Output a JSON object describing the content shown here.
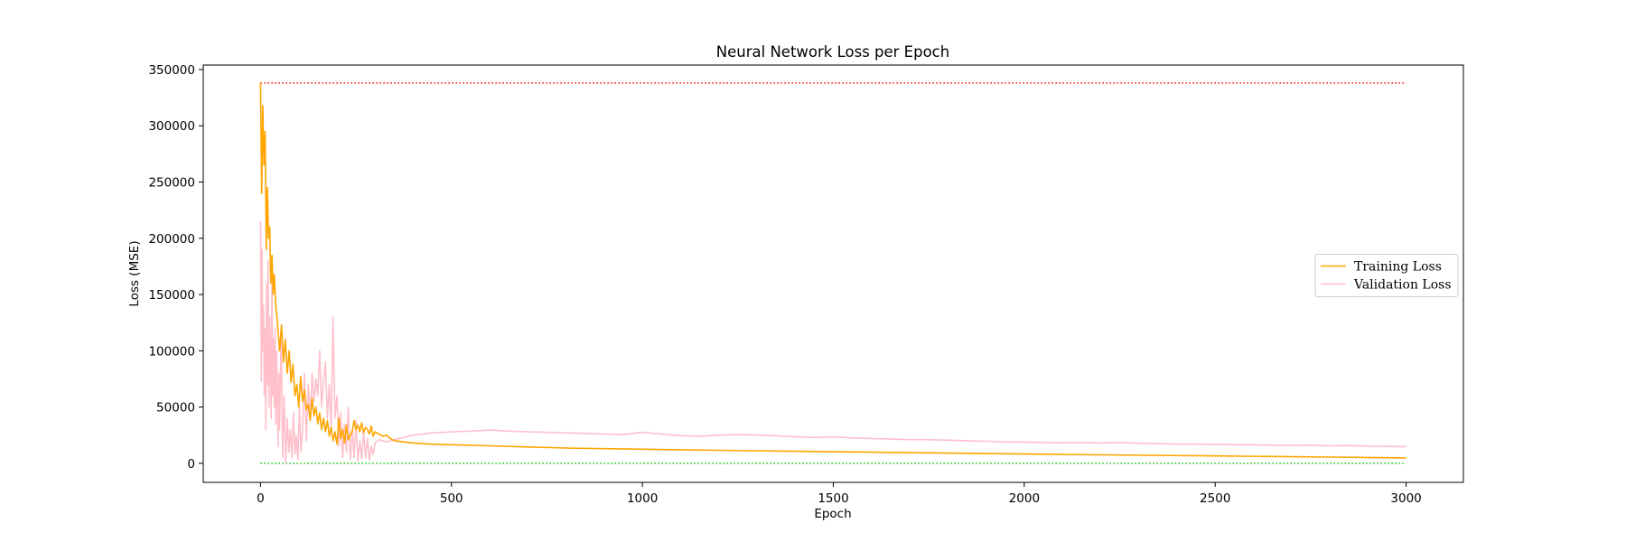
{
  "chart_data": {
    "type": "line",
    "title": "Neural Network Loss per Epoch",
    "xlabel": "Epoch",
    "ylabel": "Loss (MSE)",
    "xlim": [
      -150,
      3150
    ],
    "ylim": [
      -17000,
      354000
    ],
    "xticks": [
      0,
      500,
      1000,
      1500,
      2000,
      2500,
      3000
    ],
    "yticks": [
      0,
      50000,
      100000,
      150000,
      200000,
      250000,
      300000,
      350000
    ],
    "grid": false,
    "legend_position": "center-right",
    "series": [
      {
        "name": "Training Loss",
        "color": "#FFA500",
        "style": "solid",
        "x": [
          0,
          3,
          6,
          9,
          12,
          15,
          18,
          21,
          24,
          27,
          30,
          33,
          36,
          40,
          45,
          50,
          55,
          60,
          65,
          70,
          75,
          80,
          85,
          90,
          95,
          100,
          105,
          110,
          115,
          120,
          125,
          130,
          135,
          140,
          145,
          150,
          155,
          160,
          165,
          170,
          175,
          180,
          185,
          190,
          195,
          200,
          205,
          210,
          215,
          220,
          225,
          230,
          235,
          240,
          245,
          250,
          255,
          260,
          265,
          270,
          275,
          280,
          285,
          290,
          295,
          300,
          310,
          320,
          330,
          340,
          350,
          375,
          400,
          450,
          500,
          600,
          700,
          800,
          1000,
          1200,
          1500,
          1800,
          2000,
          2200,
          2500,
          2800,
          3000
        ],
        "y": [
          338000,
          240000,
          318000,
          265000,
          295000,
          190000,
          245000,
          200000,
          210000,
          160000,
          185000,
          150000,
          168000,
          140000,
          122000,
          100000,
          123000,
          90000,
          110000,
          80000,
          100000,
          72000,
          88000,
          60000,
          70000,
          50000,
          77000,
          55000,
          65000,
          48000,
          52000,
          38000,
          58000,
          42000,
          50000,
          35000,
          45000,
          30000,
          40000,
          28000,
          38000,
          24000,
          32000,
          20000,
          28000,
          17000,
          40000,
          22000,
          30000,
          18000,
          34000,
          21000,
          25000,
          28000,
          38000,
          30000,
          34000,
          28000,
          36000,
          27000,
          32000,
          30000,
          26000,
          33000,
          24000,
          28000,
          26000,
          24000,
          25000,
          22000,
          20000,
          19000,
          18000,
          17000,
          16500,
          15500,
          14500,
          13500,
          12500,
          11500,
          10200,
          9000,
          8200,
          7500,
          6500,
          5500,
          4800
        ]
      },
      {
        "name": "Validation Loss",
        "color": "#FFC0CB",
        "style": "solid",
        "x": [
          0,
          2,
          4,
          6,
          8,
          10,
          12,
          14,
          16,
          18,
          20,
          22,
          24,
          26,
          28,
          30,
          32,
          34,
          36,
          38,
          40,
          42,
          44,
          46,
          48,
          50,
          54,
          58,
          62,
          66,
          70,
          74,
          78,
          82,
          86,
          90,
          94,
          98,
          102,
          106,
          110,
          115,
          120,
          125,
          130,
          135,
          140,
          145,
          150,
          155,
          160,
          165,
          170,
          175,
          180,
          185,
          190,
          195,
          200,
          205,
          210,
          215,
          220,
          225,
          230,
          235,
          240,
          245,
          250,
          255,
          260,
          265,
          270,
          275,
          280,
          285,
          290,
          295,
          300,
          310,
          320,
          330,
          340,
          350,
          375,
          400,
          425,
          450,
          500,
          550,
          600,
          650,
          700,
          750,
          800,
          850,
          900,
          950,
          1000,
          1050,
          1100,
          1150,
          1200,
          1250,
          1300,
          1350,
          1400,
          1450,
          1500,
          1550,
          1600,
          1650,
          1700,
          1750,
          1800,
          1850,
          1900,
          1950,
          2000,
          2050,
          2100,
          2150,
          2200,
          2250,
          2300,
          2350,
          2400,
          2450,
          2500,
          2550,
          2600,
          2650,
          2700,
          2750,
          2800,
          2850,
          2900,
          2950,
          3000
        ],
        "y": [
          215000,
          73000,
          190000,
          100000,
          140000,
          60000,
          120000,
          30000,
          160000,
          70000,
          180000,
          50000,
          130000,
          95000,
          40000,
          170000,
          60000,
          110000,
          50000,
          120000,
          35000,
          100000,
          60000,
          15000,
          80000,
          30000,
          120000,
          5000,
          60000,
          0,
          40000,
          10000,
          30000,
          5000,
          45000,
          8000,
          25000,
          3000,
          50000,
          10000,
          30000,
          80000,
          20000,
          70000,
          40000,
          80000,
          55000,
          75000,
          60000,
          100000,
          50000,
          75000,
          90000,
          40000,
          70000,
          30000,
          130000,
          40000,
          60000,
          15000,
          45000,
          5000,
          35000,
          10000,
          50000,
          3000,
          30000,
          5000,
          38000,
          2000,
          20000,
          4000,
          28000,
          5000,
          22000,
          3000,
          15000,
          8000,
          18000,
          21000,
          20000,
          19000,
          20000,
          21000,
          23000,
          25000,
          26000,
          27000,
          28000,
          28500,
          29500,
          28500,
          28000,
          27500,
          27000,
          26500,
          26000,
          25500,
          27500,
          26000,
          24500,
          24000,
          25000,
          25500,
          25000,
          24500,
          23500,
          23000,
          23500,
          22500,
          22000,
          21500,
          21000,
          21000,
          20500,
          20000,
          19500,
          19000,
          18800,
          18500,
          18200,
          18500,
          18000,
          18500,
          17800,
          17500,
          17000,
          17000,
          16800,
          16500,
          16500,
          16000,
          15800,
          16000,
          15500,
          15800,
          15200,
          15000,
          14800
        ]
      }
    ],
    "reference_lines": [
      {
        "y": 338000,
        "color": "#FF0000",
        "style": "dotted",
        "x_range": [
          0,
          3000
        ]
      },
      {
        "y": 0,
        "color": "#00CC00",
        "style": "dotted",
        "x_range": [
          0,
          3000
        ]
      }
    ]
  }
}
